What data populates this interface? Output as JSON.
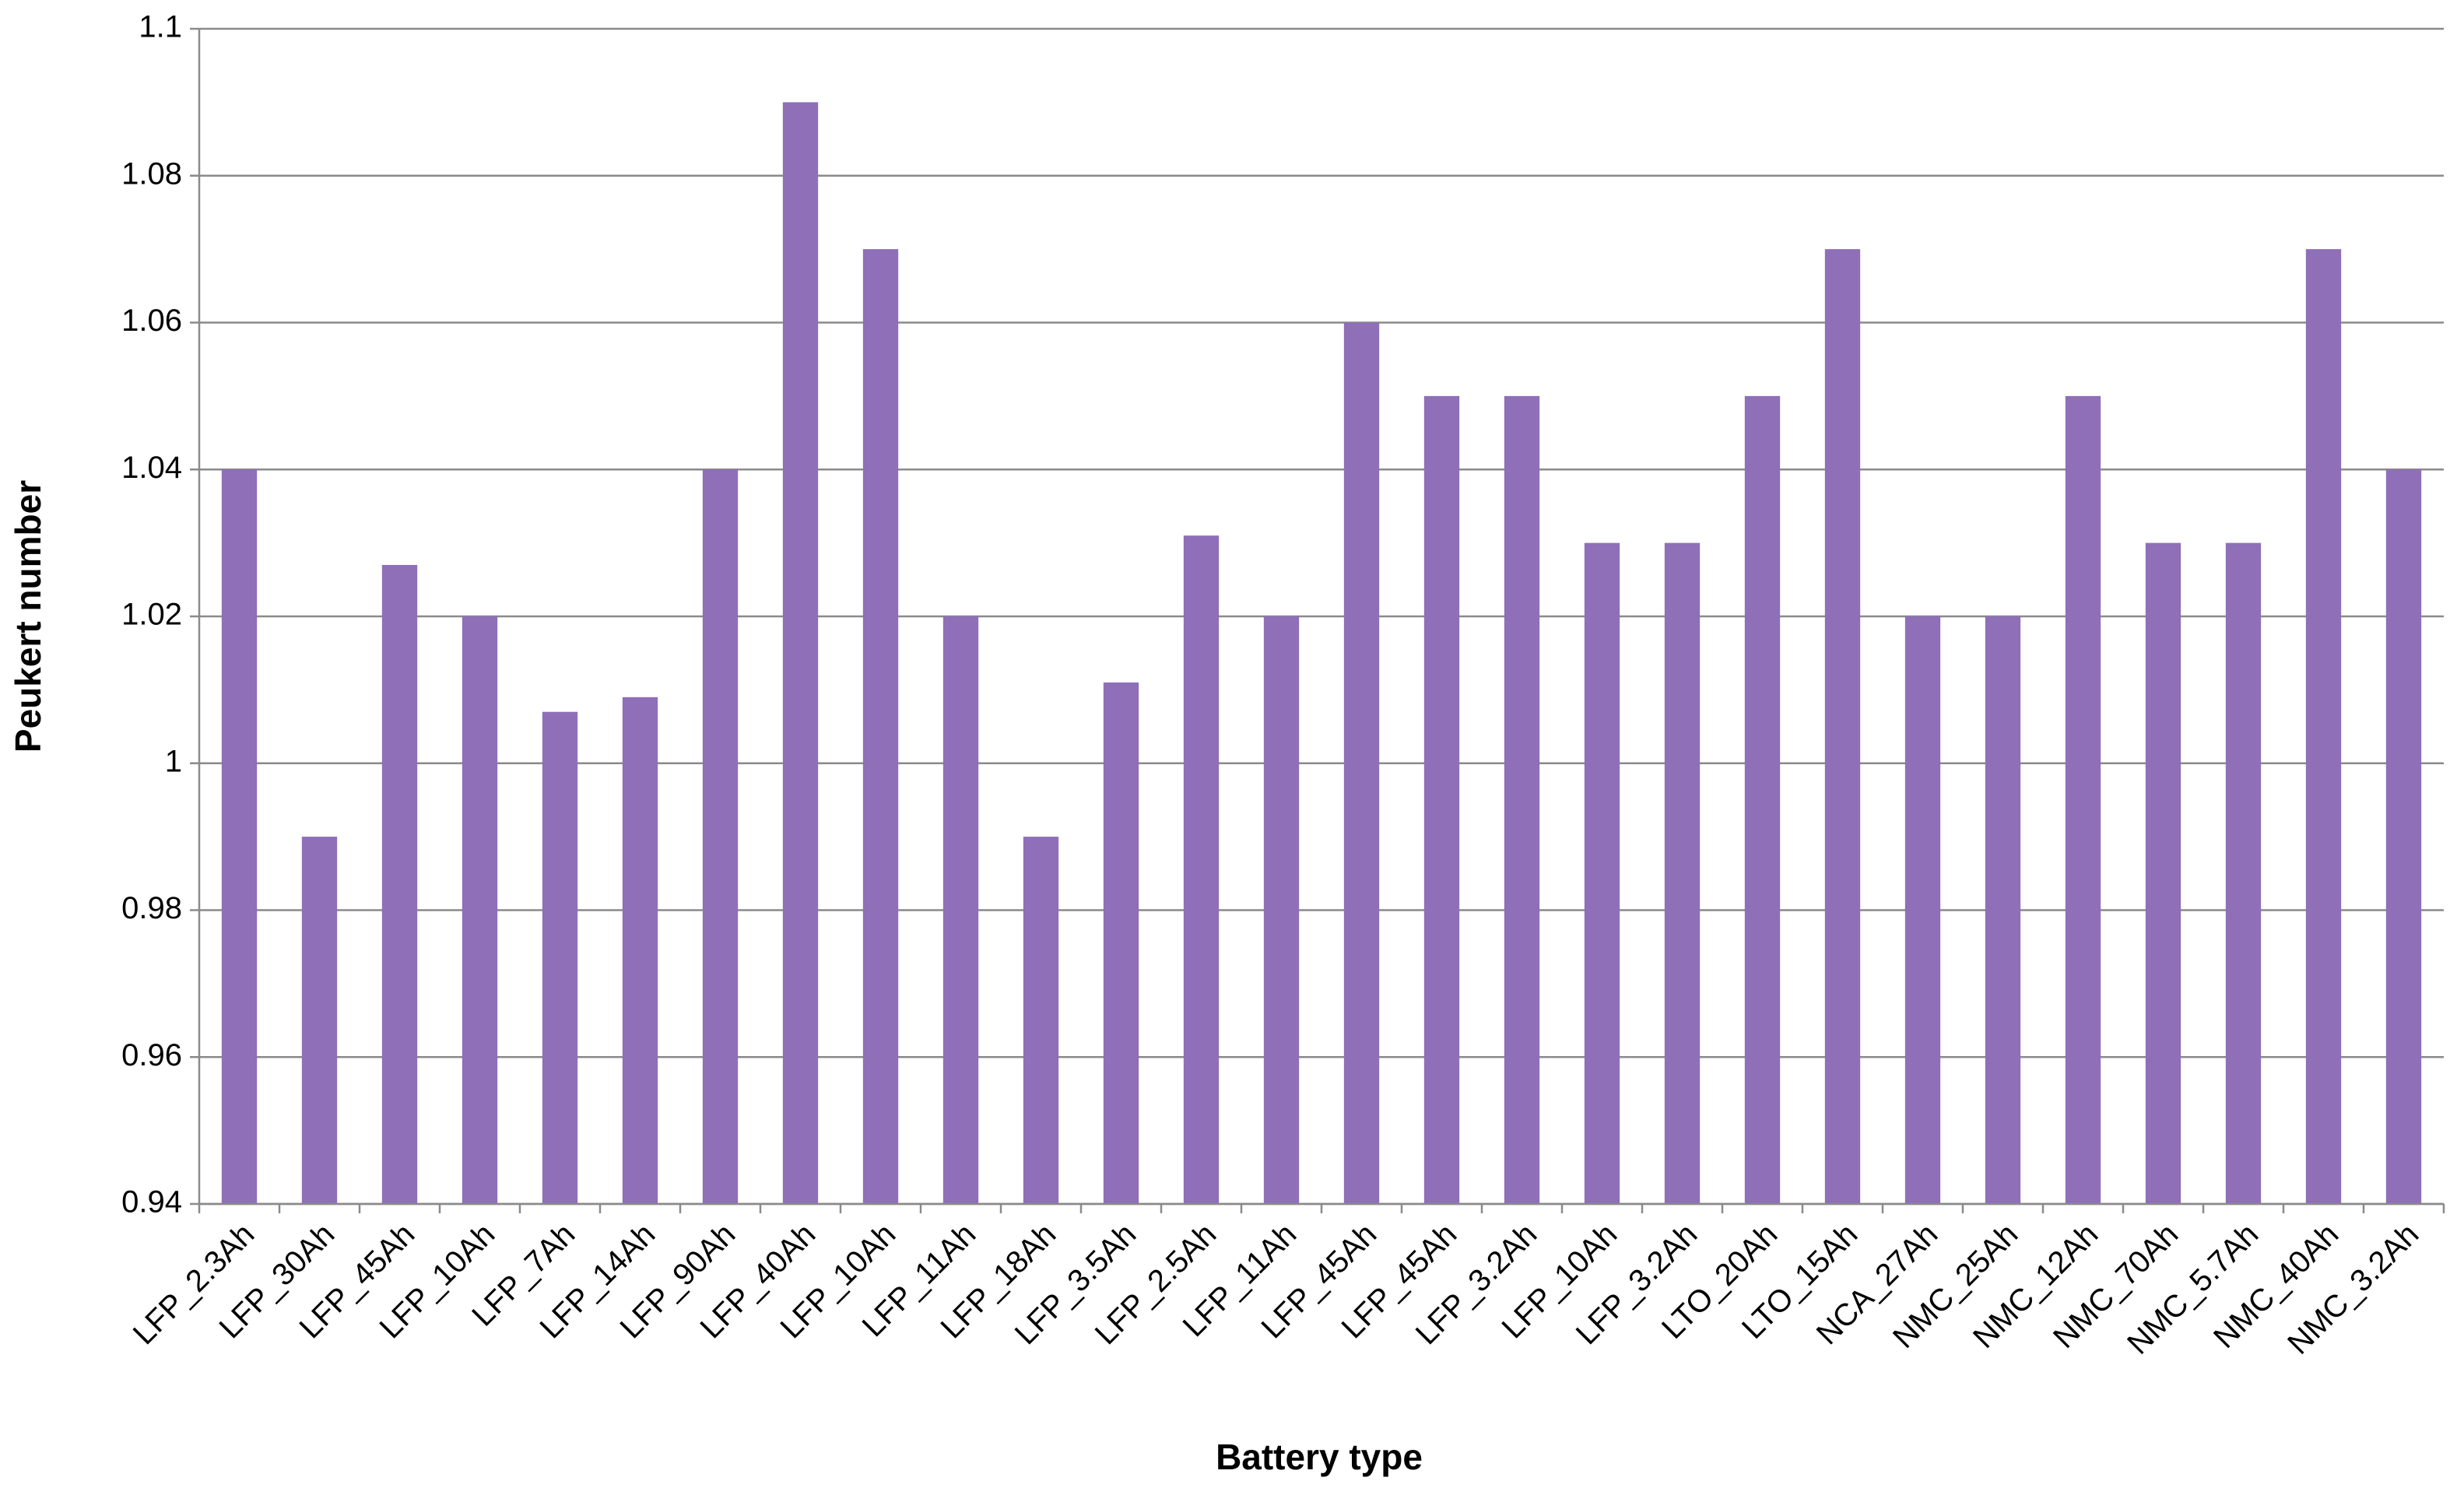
{
  "chart_data": {
    "type": "bar",
    "x_label": "Battery type",
    "y_label": "Peukert number",
    "categories": [
      "LFP_2.3Ah",
      "LFP_30Ah",
      "LFP_45Ah",
      "LFP_10Ah",
      "LFP_7Ah",
      "LFP_14Ah",
      "LFP_90Ah",
      "LFP_40Ah",
      "LFP_10Ah",
      "LFP_11Ah",
      "LFP_18Ah",
      "LFP_3.5Ah",
      "LFP_2.5Ah",
      "LFP_11Ah",
      "LFP_45Ah",
      "LFP_45Ah",
      "LFP_3.2Ah",
      "LFP_10Ah",
      "LFP_3.2Ah",
      "LTO_20Ah",
      "LTO_15Ah",
      "NCA_27Ah",
      "NMC_25Ah",
      "NMC_12Ah",
      "NMC_70Ah",
      "NMC_5.7Ah",
      "NMC_40Ah",
      "NMC_3.2Ah"
    ],
    "values": [
      1.04,
      0.99,
      1.027,
      1.02,
      1.007,
      1.009,
      1.04,
      1.09,
      1.07,
      1.02,
      0.99,
      1.011,
      1.031,
      1.02,
      1.06,
      1.05,
      1.05,
      1.03,
      1.03,
      1.05,
      1.07,
      1.02,
      1.02,
      1.05,
      1.03,
      1.03,
      1.07,
      1.04
    ],
    "color": "#8e6fb8",
    "ylim": [
      0.94,
      1.1
    ],
    "yticks": [
      0.94,
      0.96,
      0.98,
      1,
      1.02,
      1.04,
      1.06,
      1.08,
      1.1
    ],
    "grid": true
  }
}
